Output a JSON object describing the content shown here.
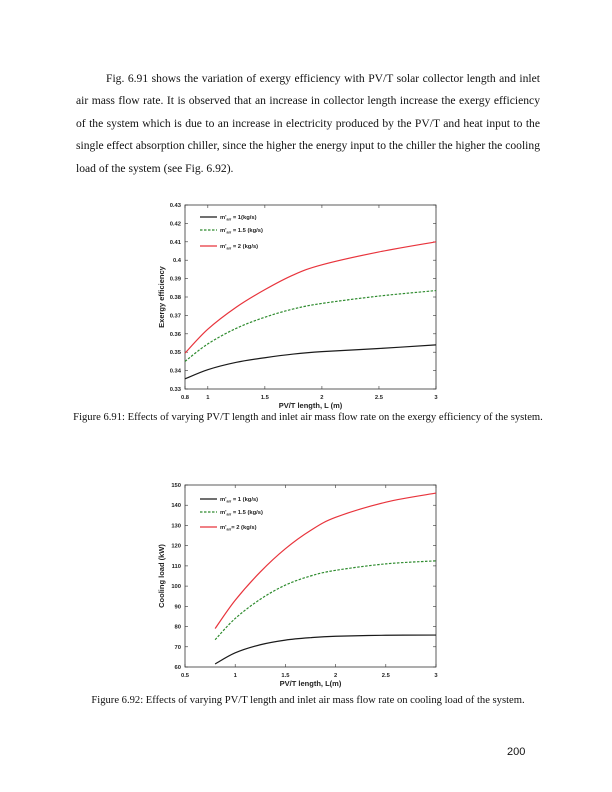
{
  "body_paragraph": "Fig. 6.91 shows the variation of exergy efficiency with PV/T solar collector length and inlet air mass flow rate. It is observed that an increase in collector length increase the exergy efficiency of the system which is due to an increase in electricity produced by the PV/T and heat input to the single effect absorption chiller, since the higher the energy input to the chiller the higher the cooling load of the system (see Fig. 6.92).",
  "figure_6_91_caption": "Figure 6.91: Effects of varying PV/T length and inlet air mass flow rate on the exergy efficiency of the system.",
  "figure_6_92_caption": "Figure 6.92: Effects of varying PV/T length and inlet air mass flow rate on cooling load of the system.",
  "page_number": "200",
  "chart_data": [
    {
      "type": "line",
      "xlabel": "PV/T length, L (m)",
      "ylabel": "Exergy efficiency",
      "xlim": [
        0.8,
        3
      ],
      "ylim": [
        0.33,
        0.43
      ],
      "xticks": [
        "0.8",
        "1",
        "1.5",
        "2",
        "2.5",
        "3"
      ],
      "yticks": [
        "0.33",
        "0.34",
        "0.35",
        "0.36",
        "0.37",
        "0.38",
        "0.39",
        "0.4",
        "0.41",
        "0.42",
        "0.43"
      ],
      "grid": false,
      "legend_position": "top-left",
      "x": [
        0.8,
        1,
        1.25,
        1.5,
        1.75,
        2,
        2.5,
        3
      ],
      "series": [
        {
          "name": "m'air = 1(kg/s)",
          "legend": {
            "m": "m'",
            "sub": "air",
            "rest": " = 1(kg/s)"
          },
          "color": "#1a1a1a",
          "dash": "solid",
          "values": [
            0.3355,
            0.3405,
            0.3445,
            0.347,
            0.349,
            0.3503,
            0.352,
            0.354
          ]
        },
        {
          "name": "m'air = 1.5 (kg/s)",
          "legend": {
            "m": "m'",
            "sub": "air",
            "rest": " = 1.5 (kg/s)"
          },
          "color": "#2e8b2e",
          "dash": "dashed",
          "values": [
            0.345,
            0.3545,
            0.363,
            0.369,
            0.3735,
            0.3765,
            0.3805,
            0.3835
          ]
        },
        {
          "name": "m'air = 2 (kg/s)",
          "legend": {
            "m": "m'",
            "sub": "air",
            "rest": " = 2 (kg/s)"
          },
          "color": "#e8343c",
          "dash": "solid",
          "values": [
            0.3495,
            0.3625,
            0.3745,
            0.384,
            0.392,
            0.3975,
            0.4045,
            0.41
          ]
        }
      ]
    },
    {
      "type": "line",
      "xlabel": "PV/T length, L(m)",
      "ylabel": "Cooling load (kW)",
      "xlim": [
        0.5,
        3
      ],
      "ylim": [
        60,
        150
      ],
      "xticks": [
        "0.5",
        "1",
        "1.5",
        "2",
        "2.5",
        "3"
      ],
      "yticks": [
        "60",
        "70",
        "80",
        "90",
        "100",
        "110",
        "120",
        "130",
        "140",
        "150"
      ],
      "grid": false,
      "legend_position": "top-left",
      "x": [
        0.8,
        1,
        1.25,
        1.5,
        1.75,
        2,
        2.5,
        3
      ],
      "series": [
        {
          "name": "m'air = 1 (kg/s)",
          "legend": {
            "m": "m'",
            "sub": "air",
            "rest": " = 1 (kg/s)"
          },
          "color": "#1a1a1a",
          "dash": "solid",
          "values": [
            61.5,
            67,
            71,
            73.3,
            74.5,
            75.2,
            75.7,
            75.8
          ]
        },
        {
          "name": "m'air = 1.5 (kg/s)",
          "legend": {
            "m": "m'",
            "sub": "air",
            "rest": " = 1.5 (kg/s)"
          },
          "color": "#2e8b2e",
          "dash": "dashed",
          "values": [
            73.5,
            84,
            93.5,
            100.5,
            105,
            107.8,
            111,
            112.5
          ]
        },
        {
          "name": "m'air= 2 (kg/s)",
          "legend": {
            "m": "m'",
            "sub": "air",
            "rest": "= 2 (kg/s)"
          },
          "color": "#e8343c",
          "dash": "solid",
          "values": [
            79,
            93,
            107,
            118.5,
            127.5,
            134,
            141.5,
            146
          ]
        }
      ]
    }
  ]
}
